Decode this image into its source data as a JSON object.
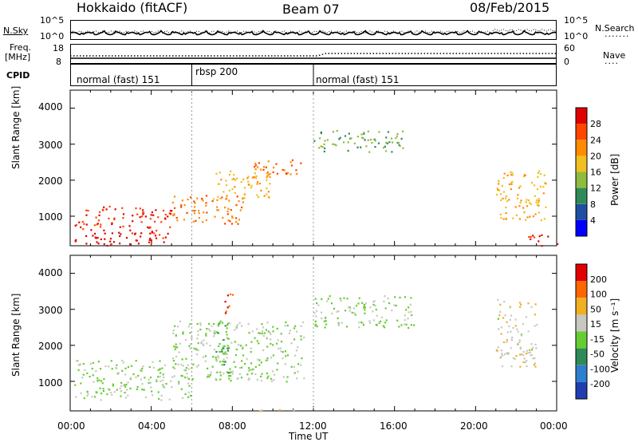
{
  "header": {
    "station": "Hokkaido (fitACF)",
    "beam": "Beam 07",
    "date": "08/Feb/2015"
  },
  "noise_panel": {
    "left_label": "N.Sky",
    "left_ticks": [
      "10^5",
      "10^0"
    ],
    "right_ticks": [
      "10^5",
      "10^0"
    ],
    "right_label": "N.Search"
  },
  "freq_panel": {
    "left_label_1": "Freq.",
    "left_label_2": "[MHz]",
    "left_ticks": [
      "18",
      "8"
    ],
    "right_ticks": [
      "60",
      "0"
    ],
    "right_label": "Nave"
  },
  "cpid_panel": {
    "label": "CPID",
    "segments": [
      {
        "label": "normal (fast) 151",
        "start_hour": 0,
        "end_hour": 6
      },
      {
        "label": "rbsp 200",
        "start_hour": 6,
        "end_hour": 12
      },
      {
        "label": "normal (fast) 151",
        "start_hour": 12,
        "end_hour": 24
      }
    ]
  },
  "power_panel": {
    "ylabel": "Slant Range [km]",
    "yticks": [
      "4000",
      "3000",
      "2000",
      "1000"
    ],
    "colorbar_label": "Power [dB]",
    "colorbar_ticks": [
      "28",
      "24",
      "20",
      "16",
      "12",
      "8",
      "4"
    ],
    "colorbar_colors": [
      "#0000ff",
      "#1e4fa0",
      "#2e8b57",
      "#8fbc3f",
      "#f0c020",
      "#ff8c00",
      "#ff4500",
      "#e00000"
    ]
  },
  "velocity_panel": {
    "ylabel": "Slant Range [km]",
    "yticks": [
      "4000",
      "3000",
      "2000",
      "1000"
    ],
    "colorbar_label": "Velocity [m s⁻¹]",
    "colorbar_ticks": [
      "200",
      "100",
      "50",
      "15",
      "-15",
      "-50",
      "-100",
      "-200"
    ],
    "colorbar_colors": [
      "#1f3fb0",
      "#2f7fd0",
      "#2e8b57",
      "#66cc33",
      "#c8c8c0",
      "#f0b020",
      "#ff6600",
      "#e00000"
    ]
  },
  "xaxis": {
    "ticks": [
      "00:00",
      "04:00",
      "08:00",
      "12:00",
      "16:00",
      "20:00",
      "00:00"
    ],
    "label": "Time UT"
  },
  "chart_data": [
    {
      "type": "heatmap",
      "quantity": "Power",
      "units": "dB",
      "x_range_hours": [
        0,
        24
      ],
      "y_range_km": [
        180,
        4500
      ],
      "colorbar_range": [
        0,
        30
      ],
      "blobs": [
        {
          "t0": 0.2,
          "t1": 4.8,
          "r0": 200,
          "r1": 700,
          "value": 28
        },
        {
          "t0": 0.2,
          "t1": 5.0,
          "r0": 700,
          "r1": 1300,
          "value": 26
        },
        {
          "t0": 5.0,
          "t1": 8.5,
          "r0": 800,
          "r1": 1600,
          "value": 22
        },
        {
          "t0": 7.0,
          "t1": 10.0,
          "r0": 1500,
          "r1": 2300,
          "value": 18
        },
        {
          "t0": 9.0,
          "t1": 11.5,
          "r0": 2100,
          "r1": 2600,
          "value": 22
        },
        {
          "t0": 12.0,
          "t1": 16.5,
          "r0": 2800,
          "r1": 3400,
          "value": 12
        },
        {
          "t0": 21.0,
          "t1": 23.5,
          "r0": 900,
          "r1": 2300,
          "value": 18
        },
        {
          "t0": 22.5,
          "t1": 24.0,
          "r0": 200,
          "r1": 500,
          "value": 28
        }
      ]
    },
    {
      "type": "heatmap",
      "quantity": "Velocity",
      "units": "m s-1",
      "x_range_hours": [
        0,
        24
      ],
      "y_range_km": [
        180,
        4500
      ],
      "colorbar_range": [
        -200,
        200
      ],
      "blobs": [
        {
          "t0": 0.2,
          "t1": 6.0,
          "r0": 500,
          "r1": 1600,
          "value": 0
        },
        {
          "t0": 5.0,
          "t1": 11.5,
          "r0": 1000,
          "r1": 2700,
          "value": 0
        },
        {
          "t0": 12.0,
          "t1": 17.0,
          "r0": 2500,
          "r1": 3400,
          "value": 0
        },
        {
          "t0": 7.6,
          "t1": 8.0,
          "r0": 2800,
          "r1": 3600,
          "value": 150
        },
        {
          "t0": 7.0,
          "t1": 7.8,
          "r0": 1200,
          "r1": 2800,
          "value": -40
        },
        {
          "t0": 21.0,
          "t1": 23.0,
          "r0": 1400,
          "r1": 3300,
          "value": 30
        },
        {
          "t0": 9.0,
          "t1": 11.5,
          "r0": 180,
          "r1": 250,
          "value": 30
        }
      ]
    }
  ]
}
